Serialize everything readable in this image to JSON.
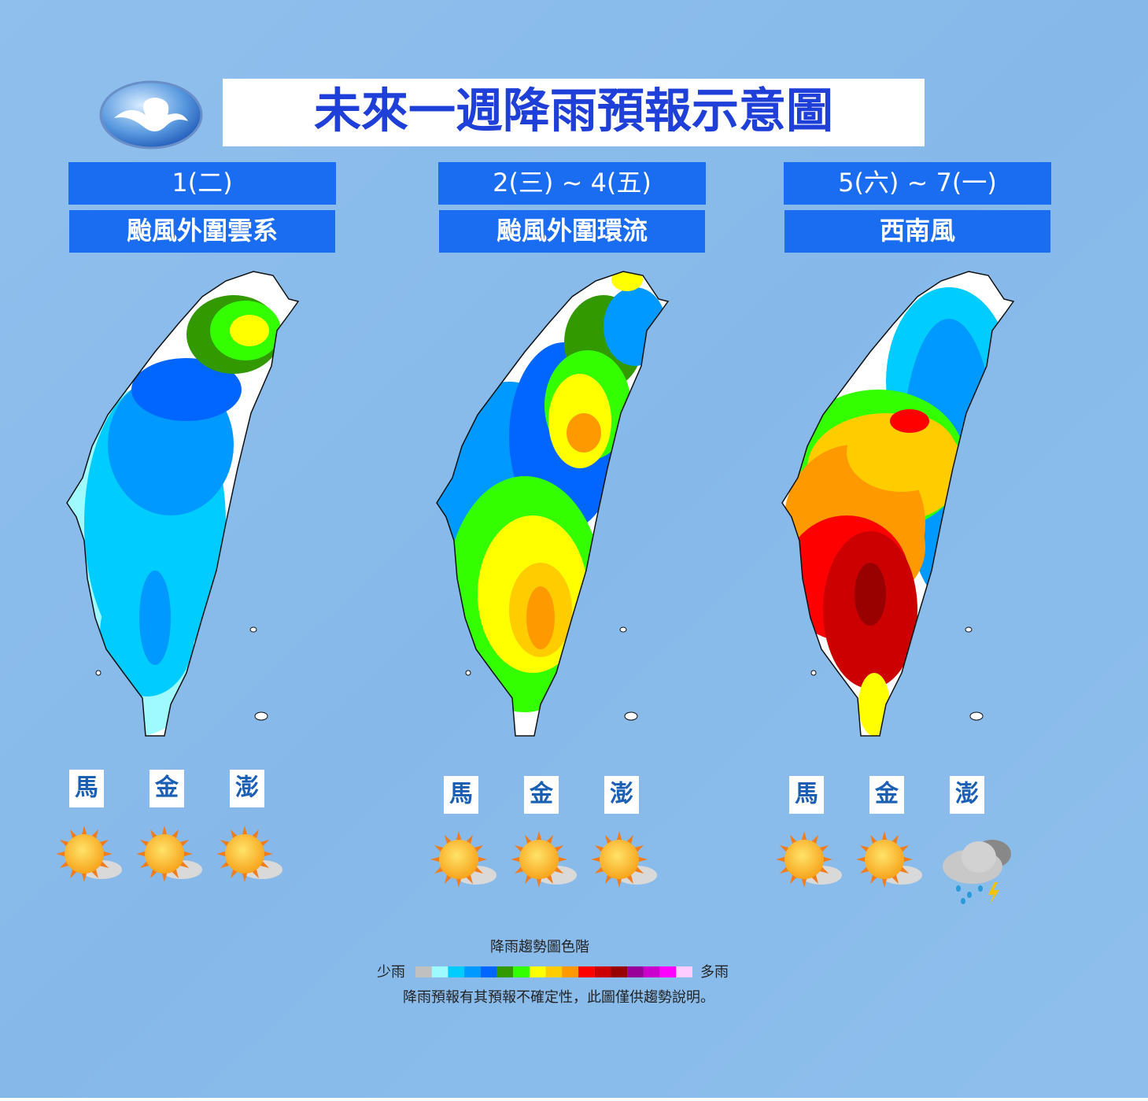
{
  "header": {
    "title": "未來一週降雨預報示意圖"
  },
  "panels": [
    {
      "date": "1(二)",
      "description": "颱風外圍雲系",
      "islands": [
        "馬",
        "金",
        "澎"
      ]
    },
    {
      "date": "2(三) ~ 4(五)",
      "description": "颱風外圍環流",
      "islands": [
        "馬",
        "金",
        "澎"
      ]
    },
    {
      "date": "5(六) ~ 7(一)",
      "description": "西南風",
      "islands": [
        "馬",
        "金",
        "澎"
      ]
    }
  ],
  "legend": {
    "title": "降雨趨勢圖色階",
    "low": "少雨",
    "high": "多雨",
    "colors": [
      "#c0c0c0",
      "#9ffaff",
      "#00ccff",
      "#0099ff",
      "#0066ff",
      "#339900",
      "#33ff00",
      "#ffff00",
      "#ffcc00",
      "#ff9900",
      "#ff0000",
      "#cc0000",
      "#990000",
      "#990099",
      "#cc00cc",
      "#ff00ff",
      "#ffccff"
    ],
    "note": "降雨預報有其預報不確定性，此圖僅供趨勢說明。"
  }
}
